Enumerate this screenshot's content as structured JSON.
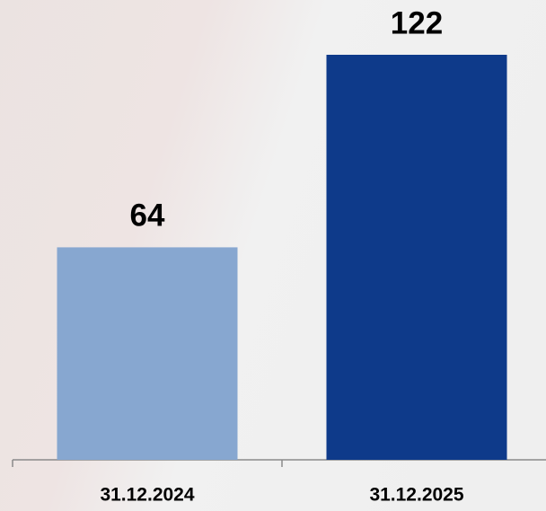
{
  "chart_data": {
    "type": "bar",
    "categories": [
      "31.12.2024",
      "31.12.2025"
    ],
    "values": [
      64,
      122
    ],
    "colors": [
      "#87a7d0",
      "#0e3a8a"
    ]
  }
}
